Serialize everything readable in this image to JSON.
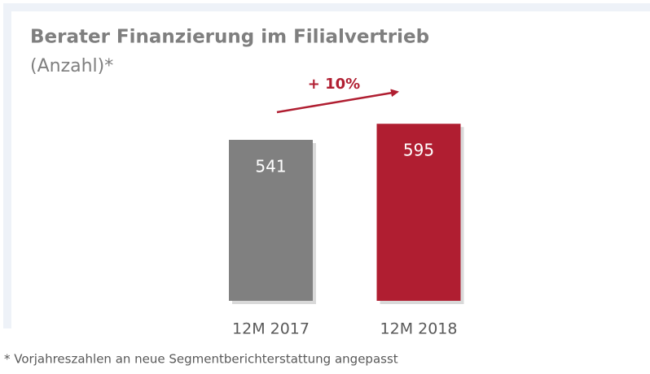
{
  "chart_data": {
    "type": "bar",
    "title": "Berater Finanzierung im Filialvertrieb",
    "subtitle": "(Anzahl)*",
    "annotation": "+ 10%",
    "footnote": "* Vorjahreszahlen an neue Segmentberichterstattung angepasst",
    "categories": [
      "12M 2017",
      "12M 2018"
    ],
    "values": [
      541,
      595
    ],
    "colors": [
      "#808080",
      "#b01e31"
    ]
  }
}
